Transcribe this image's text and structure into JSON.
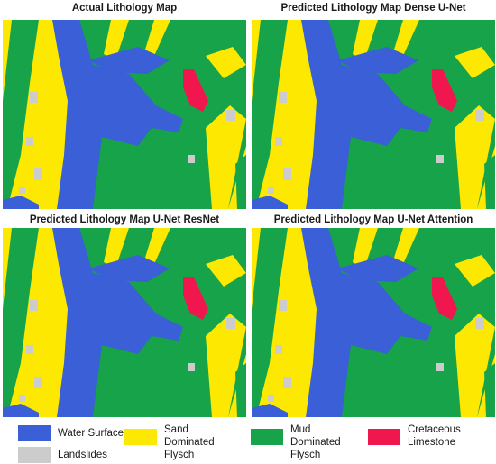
{
  "figure": {
    "panels": [
      {
        "title": "Actual Lithology Map"
      },
      {
        "title": "Predicted Lithology Map Dense U-Net"
      },
      {
        "title": "Predicted Lithology Map U-Net ResNet"
      },
      {
        "title": "Predicted Lithology Map U-Net Attention"
      }
    ],
    "legend": {
      "items": [
        {
          "id": "water",
          "label": "Water Surface",
          "color": "#3a5fd6"
        },
        {
          "id": "landslides",
          "label": "Landslides",
          "color": "#cccccc"
        },
        {
          "id": "sand",
          "label": "Sand Dominated Flysch",
          "color": "#fce800"
        },
        {
          "id": "mud",
          "label": "Mud Dominated Flysch",
          "color": "#16a34a"
        },
        {
          "id": "limestone",
          "label": "Cretaceous Limestone",
          "color": "#f0174f"
        }
      ]
    }
  }
}
